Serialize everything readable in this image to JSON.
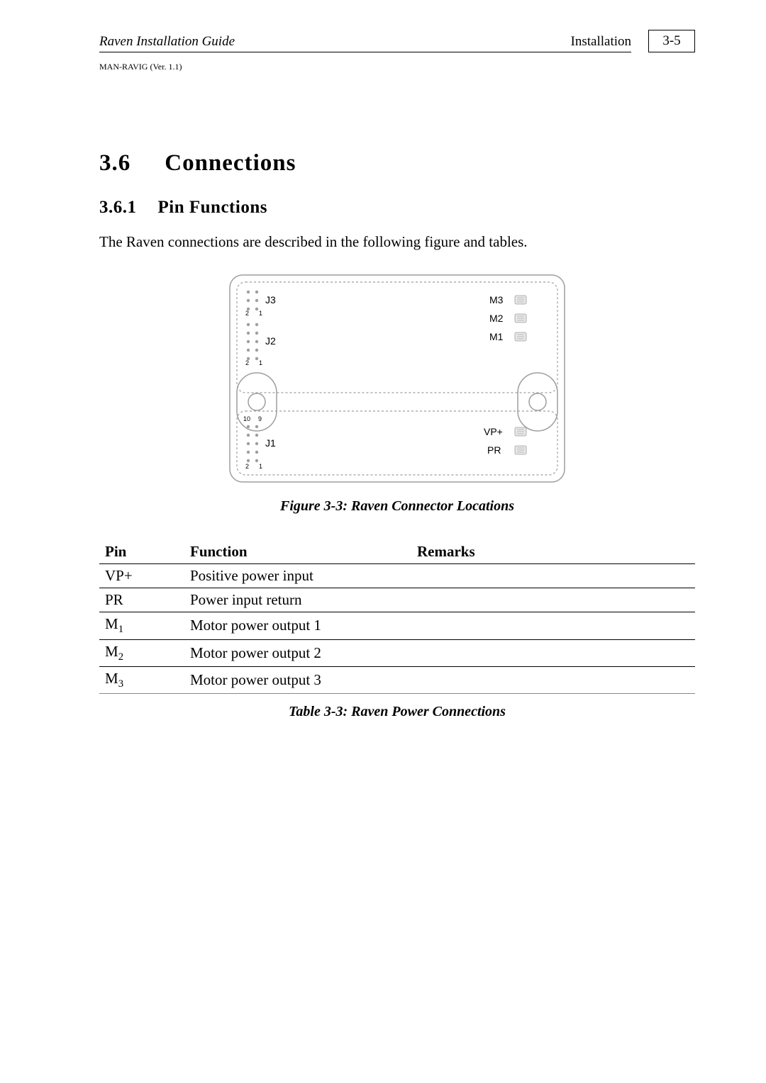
{
  "header": {
    "left": "Raven Installation Guide",
    "right": "Installation",
    "page_number": "3-5",
    "sub": "MAN-RAVIG (Ver. 1.1)"
  },
  "section": {
    "num": "3.6",
    "title": "Connections"
  },
  "subsection": {
    "num": "3.6.1",
    "title": "Pin Functions"
  },
  "intro": "The Raven connections are described in the following figure and tables.",
  "figure": {
    "caption": "Figure 3-3: Raven Connector Locations",
    "labels": {
      "J1": "J1",
      "J2": "J2",
      "J3": "J3",
      "M1": "M1",
      "M2": "M2",
      "M3": "M3",
      "VPp": "VP+",
      "PR": "PR"
    },
    "pins": {
      "p1": "1",
      "p2": "2",
      "p9": "9",
      "p10": "10"
    },
    "style": {
      "dash_color": "#9e9e9e",
      "outline_color": "#9e9e9e",
      "screw_color": "#9e9e9e",
      "dot_color": "#9e9e9e",
      "term_fill": "#e8e8e8",
      "label_fontsize": 14,
      "pin_fontsize": 9
    }
  },
  "table": {
    "caption": "Table 3-3: Raven Power Connections",
    "headers": {
      "pin": "Pin",
      "fn": "Function",
      "rem": "Remarks"
    },
    "rows": [
      {
        "pin_html": "VP+",
        "fn": "Positive power input",
        "rem": ""
      },
      {
        "pin_html": "PR",
        "fn": "Power input return",
        "rem": ""
      },
      {
        "pin_html": "M<sub>1</sub>",
        "fn": "Motor power output 1",
        "rem": ""
      },
      {
        "pin_html": "M<sub>2</sub>",
        "fn": "Motor power output 2",
        "rem": ""
      },
      {
        "pin_html": "M<sub>3</sub>",
        "fn": "Motor power output 3",
        "rem": ""
      }
    ]
  }
}
